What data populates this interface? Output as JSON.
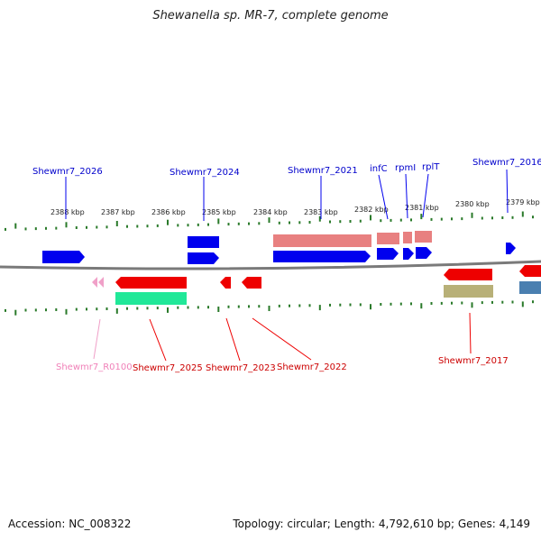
{
  "title": "Shewanella sp. MR-7, complete genome",
  "accession": "Accession: NC_008322",
  "summary": "Topology: circular; Length: 4,792,610 bp; Genes: 4,149",
  "scale_labels": [
    "2388 kbp",
    "2387 kbp",
    "2386 kbp",
    "2385 kbp",
    "2384 kbp",
    "2383 kbp",
    "2382 kbp",
    "2381 kbp",
    "2380 kbp",
    "2379 kbp"
  ],
  "top_labels": [
    "Shewmr7_2026",
    "Shewmr7_2024",
    "Shewmr7_2021",
    "infC",
    "rpmI",
    "rplT",
    "Shewmr7_2016"
  ],
  "bottom_labels": [
    "Shewmr7_R0100",
    "Shewmr7_2025",
    "Shewmr7_2023",
    "Shewmr7_2022",
    "Shewmr7_2017"
  ],
  "colors": {
    "forward_gene": "#0000ee",
    "reverse_gene": "#ee0000",
    "forward_rna": "#e88080",
    "reverse_rna_pink": "#f0a0c8",
    "feature_green": "#20e898",
    "feature_olive": "#b8b078",
    "feature_steel": "#4a7fb0",
    "tick": "#2a7a2a"
  }
}
